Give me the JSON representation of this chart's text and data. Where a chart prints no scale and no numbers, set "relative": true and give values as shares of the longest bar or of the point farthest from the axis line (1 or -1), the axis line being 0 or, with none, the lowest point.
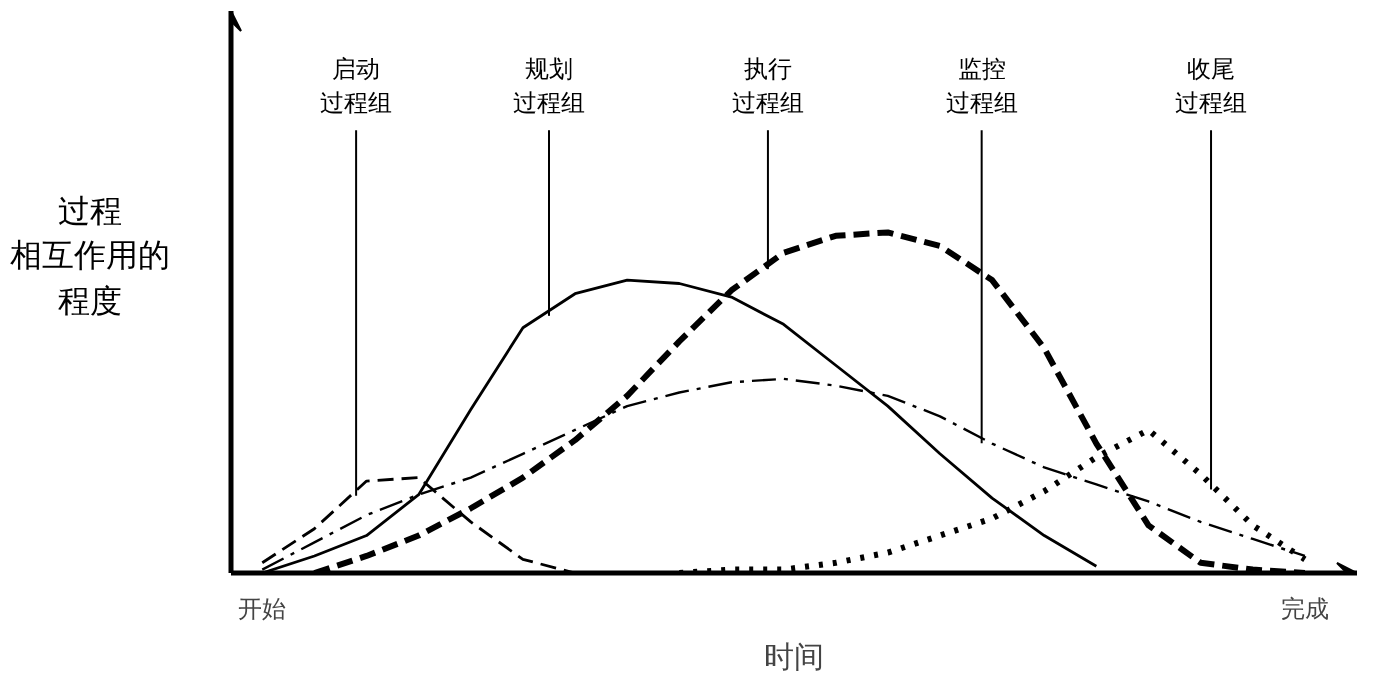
{
  "chart_data": {
    "type": "line",
    "relative": true,
    "xlabel": "时间",
    "ylabel": "过程相互作用的程度",
    "tick_labels": "x",
    "grid": false,
    "categories": [
      "开始",
      null,
      null,
      null,
      null,
      null,
      null,
      null,
      null,
      null,
      null,
      null,
      null,
      null,
      null,
      null,
      null,
      null,
      null,
      null,
      "完成"
    ],
    "series": [
      {
        "name": "启动过程组",
        "color": "#000000",
        "line_style": "dashed",
        "values": [
          0.03,
          0.13,
          0.27,
          0.28,
          0.15,
          0.04,
          0,
          null,
          null,
          null,
          null,
          null,
          null,
          null,
          null,
          null,
          null,
          null,
          null,
          null,
          null
        ]
      },
      {
        "name": "规划过程组",
        "color": "#000000",
        "line_style": "solid",
        "values": [
          0,
          0.05,
          0.11,
          0.23,
          0.48,
          0.72,
          0.82,
          0.86,
          0.85,
          0.81,
          0.73,
          0.61,
          0.49,
          0.35,
          0.22,
          0.11,
          0.02,
          null,
          null,
          null,
          null
        ]
      },
      {
        "name": "执行过程组",
        "color": "#000000",
        "line_style": "dashed",
        "values": [
          null,
          0,
          0.05,
          0.11,
          0.19,
          0.28,
          0.39,
          0.52,
          0.68,
          0.83,
          0.94,
          0.99,
          1,
          0.96,
          0.86,
          0.66,
          0.38,
          0.14,
          0.03,
          0.01,
          0
        ]
      },
      {
        "name": "监控过程组",
        "color": "#000000",
        "line_style": "dashdot",
        "values": [
          0.01,
          0.09,
          0.17,
          0.23,
          0.28,
          0.35,
          0.42,
          0.49,
          0.53,
          0.56,
          0.57,
          0.55,
          0.52,
          0.46,
          0.38,
          0.31,
          0.26,
          0.21,
          0.15,
          0.1,
          0.05
        ]
      },
      {
        "name": "收尾过程组",
        "color": "#000000",
        "line_style": "dotted",
        "values": [
          null,
          null,
          null,
          null,
          null,
          null,
          null,
          null,
          0,
          0.01,
          0.01,
          0.03,
          0.06,
          0.11,
          0.16,
          0.24,
          0.34,
          0.42,
          0.29,
          0.14,
          0.04
        ]
      }
    ]
  }
}
